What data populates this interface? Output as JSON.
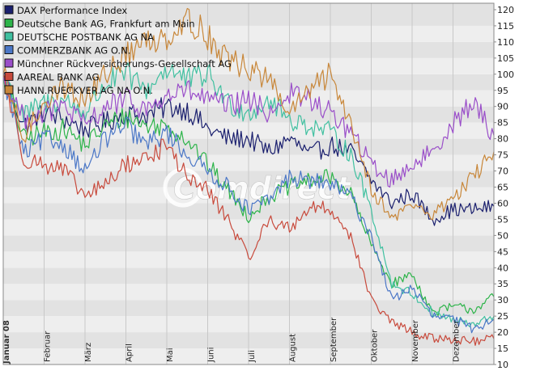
{
  "watermark": "Comdirect",
  "colors": {
    "background": "#ffffff",
    "plot_band_light": "#eeeeee",
    "plot_band_dark": "#e2e2e2",
    "grid": "#c8c8c8",
    "frame": "#8a8a8a"
  },
  "chart_data": {
    "type": "line",
    "title": "",
    "xlabel": "",
    "ylabel": "",
    "ylim": [
      10,
      122
    ],
    "y_ticks": [
      10,
      15,
      20,
      25,
      30,
      35,
      40,
      45,
      50,
      55,
      60,
      65,
      70,
      75,
      80,
      85,
      90,
      95,
      100,
      105,
      110,
      115,
      120
    ],
    "year_label": "Januar 08",
    "x_unit": "month index (0 = start of Januar 2008, 12 = end of Dezember 2008)",
    "x_months": [
      {
        "label": "Februar",
        "x": 1
      },
      {
        "label": "März",
        "x": 2
      },
      {
        "label": "April",
        "x": 3
      },
      {
        "label": "Mai",
        "x": 4
      },
      {
        "label": "Juni",
        "x": 5
      },
      {
        "label": "Juli",
        "x": 6
      },
      {
        "label": "August",
        "x": 7
      },
      {
        "label": "September",
        "x": 8
      },
      {
        "label": "Oktober",
        "x": 9
      },
      {
        "label": "November",
        "x": 10
      },
      {
        "label": "Dezember",
        "x": 11
      }
    ],
    "grid": true,
    "legend": "top-left",
    "series": [
      {
        "name": "DAX Performance Index",
        "color": "#1a1f6e",
        "x": [
          0,
          0.5,
          1,
          1.5,
          2,
          2.5,
          3,
          3.5,
          4,
          4.5,
          5,
          5.5,
          6,
          6.5,
          7,
          7.5,
          8,
          8.5,
          9,
          9.5,
          10,
          10.5,
          11,
          11.5,
          12
        ],
        "y": [
          100,
          84,
          88,
          86,
          83,
          85,
          88,
          87,
          90,
          89,
          83,
          80,
          80,
          76,
          80,
          75,
          78,
          76,
          67,
          60,
          63,
          55,
          58,
          58,
          59
        ]
      },
      {
        "name": "Deutsche Bank AG, Frankfurt am Main",
        "color": "#2db44a",
        "x": [
          0,
          0.5,
          1,
          1.5,
          2,
          2.5,
          3,
          3.5,
          4,
          4.5,
          5,
          5.5,
          6,
          6.5,
          7,
          7.5,
          8,
          8.5,
          9,
          9.5,
          10,
          10.5,
          11,
          11.5,
          12
        ],
        "y": [
          100,
          80,
          82,
          83,
          78,
          84,
          87,
          84,
          84,
          80,
          72,
          64,
          56,
          62,
          65,
          67,
          68,
          63,
          47,
          35,
          38,
          26,
          28,
          27,
          31
        ]
      },
      {
        "name": "DEUTSCHE POSTBANK AG NA",
        "color": "#40c0a0",
        "x": [
          0,
          0.5,
          1,
          1.5,
          2,
          2.5,
          3,
          3.5,
          4,
          4.5,
          5,
          5.5,
          6,
          6.5,
          7,
          7.5,
          8,
          8.5,
          9,
          9.5,
          10,
          10.5,
          11,
          11.5,
          12
        ],
        "y": [
          100,
          87,
          91,
          92,
          88,
          97,
          100,
          95,
          102,
          98,
          100,
          91,
          88,
          92,
          86,
          84,
          82,
          75,
          58,
          35,
          32,
          26,
          24,
          22,
          25
        ]
      },
      {
        "name": "COMMERZBANK AG O.N.",
        "color": "#4b77c7",
        "x": [
          0,
          0.5,
          1,
          1.5,
          2,
          2.5,
          3,
          3.5,
          4,
          4.5,
          5,
          5.5,
          6,
          6.5,
          7,
          7.5,
          8,
          8.5,
          9,
          9.5,
          10,
          10.5,
          11,
          11.5,
          12
        ],
        "y": [
          100,
          75,
          80,
          78,
          70,
          80,
          84,
          78,
          82,
          75,
          70,
          65,
          58,
          61,
          68,
          67,
          66,
          62,
          50,
          30,
          34,
          25,
          24,
          21,
          24
        ]
      },
      {
        "name": "Münchner Rückversicherungs-Gesellschaft AG",
        "color": "#9a4ec9",
        "x": [
          0,
          0.5,
          1,
          1.5,
          2,
          2.5,
          3,
          3.5,
          4,
          4.5,
          5,
          5.5,
          6,
          6.5,
          7,
          7.5,
          8,
          8.5,
          9,
          9.5,
          10,
          10.5,
          11,
          11.5,
          12
        ],
        "y": [
          100,
          86,
          88,
          90,
          84,
          90,
          92,
          89,
          93,
          95,
          92,
          90,
          92,
          88,
          94,
          92,
          88,
          82,
          72,
          67,
          72,
          76,
          85,
          91,
          81
        ]
      },
      {
        "name": "AAREAL BANK AG",
        "color": "#c84a3c",
        "x": [
          0,
          0.5,
          1,
          1.5,
          2,
          2.5,
          3,
          3.5,
          4,
          4.5,
          5,
          5.5,
          6,
          6.5,
          7,
          7.5,
          8,
          8.5,
          9,
          9.5,
          10,
          10.5,
          11,
          11.5,
          12
        ],
        "y": [
          100,
          74,
          72,
          70,
          62,
          66,
          72,
          74,
          78,
          68,
          64,
          55,
          43,
          55,
          52,
          59,
          58,
          50,
          30,
          23,
          20,
          18,
          18,
          17,
          18
        ]
      },
      {
        "name": "HANN.RUECKVER.AG NA O.N.",
        "color": "#c8873a",
        "x": [
          0,
          0.5,
          1,
          1.5,
          2,
          2.5,
          3,
          3.5,
          4,
          4.5,
          5,
          5.5,
          6,
          6.5,
          7,
          7.5,
          8,
          8.5,
          9,
          9.5,
          10,
          10.5,
          11,
          11.5,
          12
        ],
        "y": [
          100,
          80,
          92,
          96,
          92,
          100,
          106,
          110,
          112,
          117,
          112,
          104,
          102,
          98,
          88,
          95,
          100,
          85,
          65,
          55,
          60,
          56,
          62,
          68,
          76
        ]
      }
    ]
  }
}
